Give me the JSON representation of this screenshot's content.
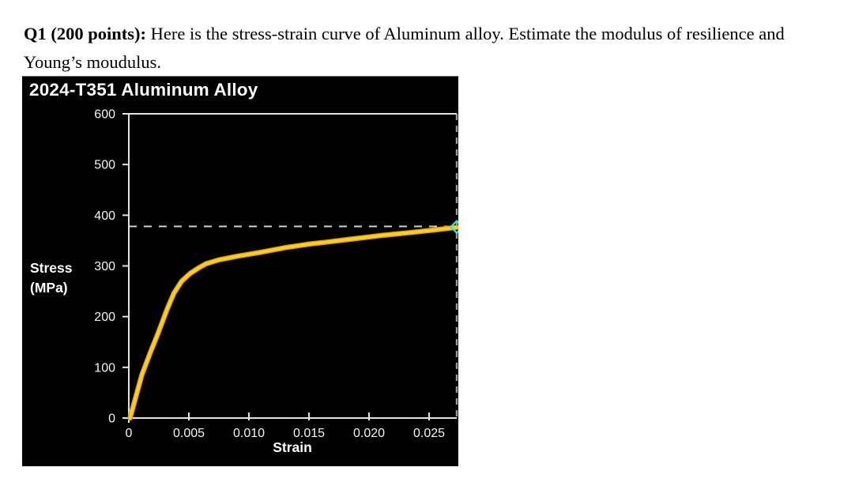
{
  "question": {
    "bold": "Q1 (200 points):",
    "rest": " Here is the stress-strain curve of Aluminum alloy. Estimate the modulus of resilience and Young’s moudulus."
  },
  "chart": {
    "title": "2024-T351 Aluminum Alloy",
    "ylabel_line1": "Stress",
    "ylabel_line2": "(MPa)",
    "xlabel": "Strain",
    "colors": {
      "plot_background": "#000000",
      "axis": "#e2e2e2",
      "tick_text": "#f5f5f5",
      "curve": "#ffce1b",
      "curve_edge": "#d89e00",
      "yield_dash": "#d0d0d0",
      "right_border_dash": "#9a9a9a",
      "end_marker": "#3fe0d4"
    }
  },
  "chart_data": {
    "type": "line",
    "title": "2024-T351 Aluminum Alloy",
    "xlabel": "Strain",
    "ylabel": "Stress (MPa)",
    "xlim": [
      0,
      0.0273
    ],
    "ylim": [
      0,
      600
    ],
    "grid": false,
    "x_ticks": [
      0,
      0.005,
      0.01,
      0.015,
      0.02,
      0.025
    ],
    "x_tick_labels": [
      "0",
      "0.005",
      "0.010",
      "0.015",
      "0.020",
      "0.025"
    ],
    "y_ticks": [
      0,
      100,
      200,
      300,
      400,
      500,
      600
    ],
    "y_tick_labels": [
      "0",
      "100",
      "200",
      "300",
      "400",
      "500",
      "600"
    ],
    "yield_line": {
      "stress_mpa": 378,
      "style": "dashed"
    },
    "right_border": {
      "strain": 0.0273,
      "style": "dashed"
    },
    "series": [
      {
        "name": "2024-T351 aluminum alloy stress-strain",
        "color": "#ffce1b",
        "points": [
          [
            0.0001,
            0
          ],
          [
            0.0011,
            86
          ],
          [
            0.0018,
            130
          ],
          [
            0.0024,
            165
          ],
          [
            0.0032,
            215
          ],
          [
            0.00375,
            246
          ],
          [
            0.0044,
            270
          ],
          [
            0.0051,
            285
          ],
          [
            0.0058,
            296
          ],
          [
            0.0064,
            304
          ],
          [
            0.0075,
            312
          ],
          [
            0.009,
            319
          ],
          [
            0.011,
            327
          ],
          [
            0.013,
            336
          ],
          [
            0.015,
            343
          ],
          [
            0.0165,
            347
          ],
          [
            0.0182,
            352
          ],
          [
            0.021,
            360
          ],
          [
            0.0235,
            366
          ],
          [
            0.0255,
            371
          ],
          [
            0.0273,
            376
          ]
        ]
      }
    ],
    "end_marker": {
      "strain": 0.0273,
      "stress_mpa": 377,
      "shape": "diamond",
      "color": "#3fe0d4"
    }
  }
}
